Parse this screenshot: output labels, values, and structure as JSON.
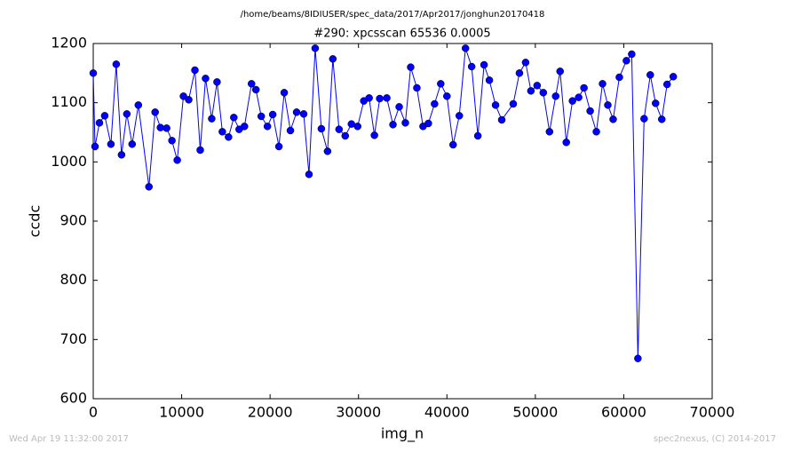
{
  "chart_data": {
    "type": "line",
    "title": "/home/beams/8IDIUSER/spec_data/2017/Apr2017/jonghun20170418",
    "subtitle": "#290: xpcsscan 65536 0.0005",
    "x_label": "img_n",
    "y_label": "ccdc",
    "footer_left": "Wed Apr 19 11:32:00 2017",
    "footer_right": "spec2nexus, (C) 2014-2017",
    "color": "#0000ff",
    "marker": true,
    "xlim": [
      0,
      70000
    ],
    "xticks": [
      0,
      10000,
      20000,
      30000,
      40000,
      50000,
      60000,
      70000
    ],
    "ylim": [
      600,
      1200
    ],
    "yticks": [
      600,
      700,
      800,
      900,
      1000,
      1100,
      1200
    ],
    "x": [
      0,
      200,
      700,
      1300,
      2000,
      2600,
      3200,
      3800,
      4400,
      5100,
      6300,
      7000,
      7600,
      8300,
      8900,
      9500,
      10200,
      10800,
      11500,
      12100,
      12700,
      13400,
      14000,
      14600,
      15300,
      15900,
      16500,
      17100,
      17900,
      18400,
      19000,
      19700,
      20300,
      21000,
      21600,
      22300,
      23000,
      23800,
      24400,
      25100,
      25800,
      26500,
      27100,
      27800,
      28500,
      29200,
      29900,
      30600,
      31200,
      31800,
      32400,
      33200,
      33900,
      34600,
      35300,
      35900,
      36600,
      37300,
      37900,
      38600,
      39300,
      40000,
      40700,
      41400,
      42100,
      42800,
      43500,
      44200,
      44800,
      45500,
      46200,
      47500,
      48200,
      48900,
      49500,
      50200,
      50900,
      51600,
      52300,
      52800,
      53500,
      54200,
      54900,
      55500,
      56200,
      56900,
      57600,
      58200,
      58800,
      59500,
      60300,
      60900,
      61600,
      62300,
      63000,
      63600,
      64300,
      64900,
      65600
    ],
    "values": [
      1150,
      1026,
      1066,
      1078,
      1030,
      1165,
      1012,
      1081,
      1030,
      1096,
      958,
      1084,
      1058,
      1057,
      1036,
      1003,
      1111,
      1105,
      1155,
      1020,
      1141,
      1073,
      1135,
      1051,
      1042,
      1075,
      1055,
      1060,
      1132,
      1122,
      1077,
      1060,
      1080,
      1026,
      1117,
      1053,
      1084,
      1081,
      979,
      1192,
      1056,
      1018,
      1174,
      1055,
      1044,
      1064,
      1060,
      1103,
      1108,
      1045,
      1107,
      1108,
      1063,
      1093,
      1066,
      1160,
      1125,
      1060,
      1065,
      1098,
      1132,
      1111,
      1029,
      1078,
      1192,
      1161,
      1044,
      1164,
      1138,
      1096,
      1071,
      1098,
      1150,
      1168,
      1120,
      1129,
      1117,
      1051,
      1111,
      1153,
      1033,
      1103,
      1109,
      1125,
      1086,
      1051,
      1132,
      1096,
      1072,
      1143,
      1171,
      1182,
      668,
      1073,
      1147,
      1099,
      1072,
      1131,
      1144
    ]
  }
}
